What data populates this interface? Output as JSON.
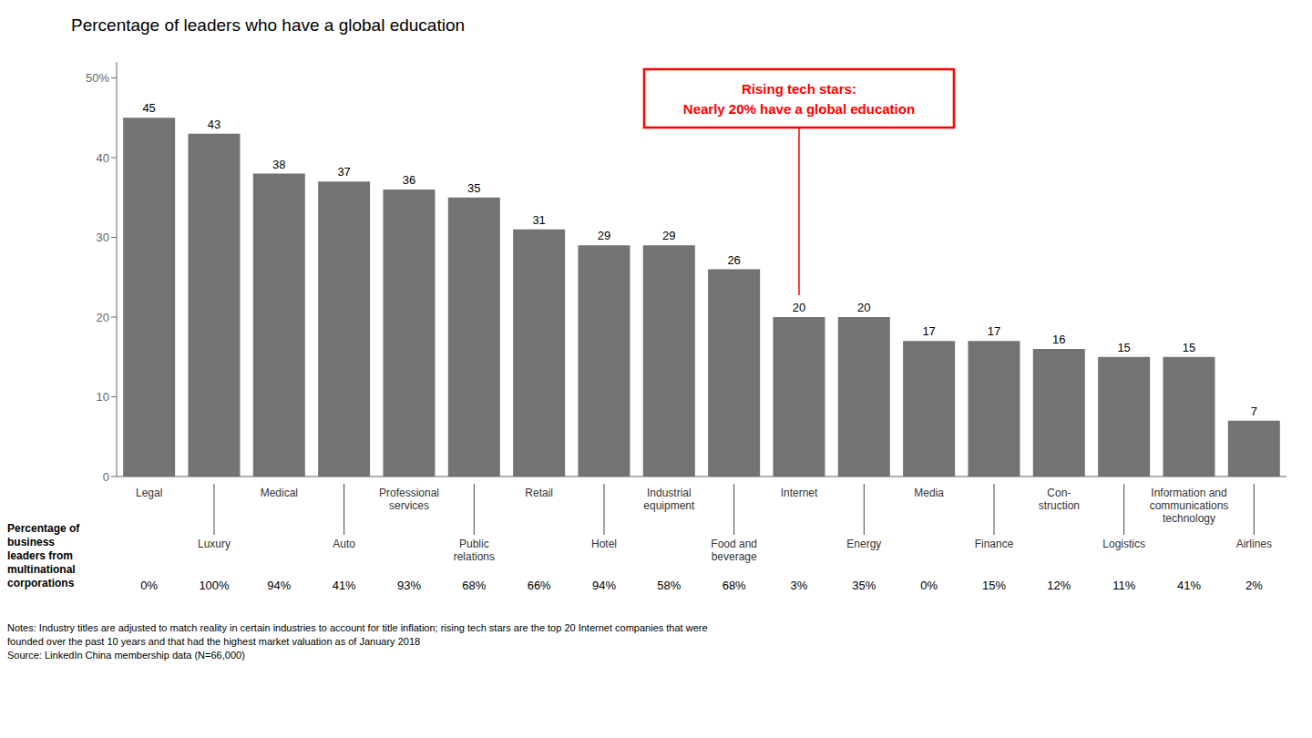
{
  "chart_data": {
    "type": "bar",
    "title": "Percentage of leaders who have a global education",
    "categories": [
      "Legal",
      "Luxury",
      "Medical",
      "Auto",
      "Professional\nservices",
      "Public\nrelations",
      "Retail",
      "Hotel",
      "Industrial\nequipment",
      "Food and\nbeverage",
      "Internet",
      "Energy",
      "Media",
      "Finance",
      "Con-\nstruction",
      "Logistics",
      "Information and\ncommunications\ntechnology",
      "Airlines"
    ],
    "values": [
      45,
      43,
      38,
      37,
      36,
      35,
      31,
      29,
      29,
      26,
      20,
      20,
      17,
      17,
      16,
      15,
      15,
      7
    ],
    "color": "#737373",
    "ylim": [
      0,
      52
    ],
    "yticks": [
      0,
      10,
      20,
      30,
      40,
      {
        "value": 50,
        "label": "50%"
      }
    ],
    "grid": false,
    "data_labels": true,
    "annotations": [
      {
        "text": "Rising tech stars:\nNearly 20% have a global education",
        "x": "Internet",
        "color": "red"
      }
    ],
    "multinational_pct": {
      "label": "Percentage of\nbusiness\nleaders from\nmultinational\ncorporations",
      "values": [
        "0%",
        "100%",
        "94%",
        "41%",
        "93%",
        "68%",
        "66%",
        "94%",
        "58%",
        "68%",
        "3%",
        "35%",
        "0%",
        "15%",
        "12%",
        "11%",
        "41%",
        "2%"
      ]
    },
    "notes": "Notes: Industry titles are adjusted to match reality in certain industries to account for title inflation; rising tech stars are the top 20 Internet companies that were\nfounded over the past 10 years and that had the highest market valuation as of January 2018\nSource: LinkedIn China membership data (N=66,000)"
  }
}
